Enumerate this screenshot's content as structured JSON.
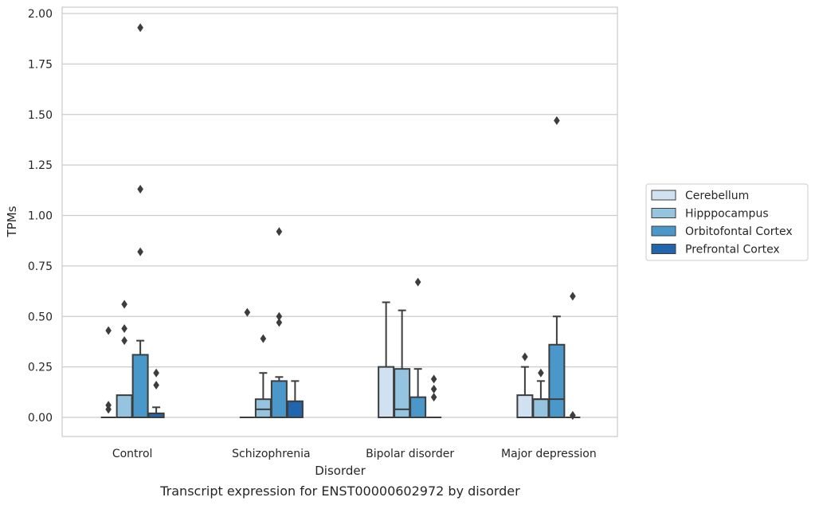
{
  "chart_data": {
    "type": "box",
    "title": "",
    "caption": "Transcript expression for ENST00000602972 by disorder",
    "xlabel": "Disorder",
    "ylabel": "TPMs",
    "ylim": [
      -0.09,
      2.02
    ],
    "yticks": [
      "0.00",
      "0.25",
      "0.50",
      "0.75",
      "1.00",
      "1.25",
      "1.50",
      "1.75",
      "2.00"
    ],
    "grid": "horizontal",
    "legend_position": "right",
    "categories": [
      "Control",
      "Schizophrenia",
      "Bipolar disorder",
      "Major depression"
    ],
    "series": [
      {
        "name": "Cerebellum",
        "color": "#d0e1f2",
        "boxes": [
          {
            "q1": 0.0,
            "median": 0.0,
            "q3": 0.0,
            "whisker_low": 0.0,
            "whisker_high": 0.0,
            "outliers": [
              0.04,
              0.06,
              0.43
            ]
          },
          {
            "q1": 0.0,
            "median": 0.0,
            "q3": 0.0,
            "whisker_low": 0.0,
            "whisker_high": 0.0,
            "outliers": [
              0.52
            ]
          },
          {
            "q1": 0.0,
            "median": 0.0,
            "q3": 0.25,
            "whisker_low": 0.0,
            "whisker_high": 0.57,
            "outliers": []
          },
          {
            "q1": 0.0,
            "median": 0.0,
            "q3": 0.11,
            "whisker_low": 0.0,
            "whisker_high": 0.25,
            "outliers": [
              0.3
            ]
          }
        ]
      },
      {
        "name": "Hipppocampus",
        "color": "#94c4df",
        "boxes": [
          {
            "q1": 0.0,
            "median": 0.0,
            "q3": 0.11,
            "whisker_low": 0.0,
            "whisker_high": 0.11,
            "outliers": [
              0.38,
              0.44,
              0.56
            ]
          },
          {
            "q1": 0.0,
            "median": 0.04,
            "q3": 0.09,
            "whisker_low": 0.0,
            "whisker_high": 0.22,
            "outliers": [
              0.39
            ]
          },
          {
            "q1": 0.0,
            "median": 0.04,
            "q3": 0.24,
            "whisker_low": 0.0,
            "whisker_high": 0.53,
            "outliers": []
          },
          {
            "q1": 0.0,
            "median": 0.09,
            "q3": 0.09,
            "whisker_low": 0.0,
            "whisker_high": 0.18,
            "outliers": [
              0.22
            ]
          }
        ]
      },
      {
        "name": "Orbitofontal Cortex",
        "color": "#4a98c9",
        "boxes": [
          {
            "q1": 0.0,
            "median": 0.0,
            "q3": 0.31,
            "whisker_low": 0.0,
            "whisker_high": 0.38,
            "outliers": [
              0.82,
              1.13,
              1.93
            ]
          },
          {
            "q1": 0.0,
            "median": 0.0,
            "q3": 0.18,
            "whisker_low": 0.0,
            "whisker_high": 0.2,
            "outliers": [
              0.47,
              0.5,
              0.92
            ]
          },
          {
            "q1": 0.0,
            "median": 0.0,
            "q3": 0.1,
            "whisker_low": 0.0,
            "whisker_high": 0.24,
            "outliers": [
              0.67
            ]
          },
          {
            "q1": 0.0,
            "median": 0.09,
            "q3": 0.36,
            "whisker_low": 0.0,
            "whisker_high": 0.5,
            "outliers": [
              1.47
            ]
          }
        ]
      },
      {
        "name": "Prefrontal Cortex",
        "color": "#2166ac",
        "boxes": [
          {
            "q1": 0.0,
            "median": 0.0,
            "q3": 0.02,
            "whisker_low": 0.0,
            "whisker_high": 0.05,
            "outliers": [
              0.16,
              0.22
            ]
          },
          {
            "q1": 0.0,
            "median": 0.0,
            "q3": 0.08,
            "whisker_low": 0.0,
            "whisker_high": 0.18,
            "outliers": []
          },
          {
            "q1": 0.0,
            "median": 0.0,
            "q3": 0.0,
            "whisker_low": 0.0,
            "whisker_high": 0.0,
            "outliers": [
              0.1,
              0.14,
              0.19
            ]
          },
          {
            "q1": 0.0,
            "median": 0.0,
            "q3": 0.0,
            "whisker_low": 0.0,
            "whisker_high": 0.0,
            "outliers": [
              0.01,
              0.01,
              0.6
            ]
          }
        ]
      }
    ]
  }
}
